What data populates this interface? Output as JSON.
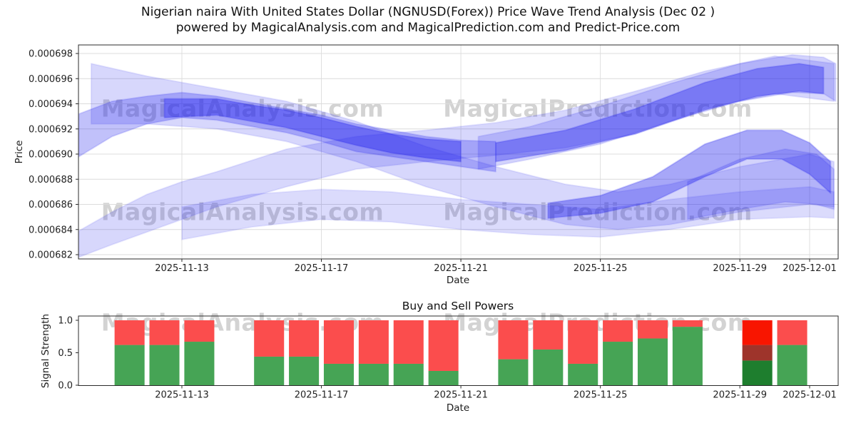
{
  "title_line1": "Nigerian naira With United States Dollar (NGNUSD(Forex)) Price Wave Trend Analysis (Dec 02 )",
  "title_line2": "powered by MagicalAnalysis.com and MagicalPrediction.com and Predict-Price.com",
  "watermarks": {
    "left": "MagicalAnalysis.com",
    "right": "MagicalPrediction.com"
  },
  "colors": {
    "band": "#2222ee",
    "grid": "#dcdcdc",
    "axis": "#2b2b2b",
    "green": "#46a455",
    "red": "#fb4d4d",
    "bright_red": "#f81500",
    "dark_red": "#9e342b",
    "dark_green": "#1e7e2e"
  },
  "chart_data": [
    {
      "type": "area",
      "title": "",
      "xlabel": "Date",
      "ylabel": "Price",
      "x_day_origin": "day 0 = 2025-11-10",
      "ylim": [
        0.000682,
        0.000698
      ],
      "grid": true,
      "y_unit_note": "band values are price × 1e-6 (e.g. 693.5 = 0.0006935)",
      "yticks": [
        {
          "v": 682,
          "label": "0.000682"
        },
        {
          "v": 684,
          "label": "0.000684"
        },
        {
          "v": 686,
          "label": "0.000686"
        },
        {
          "v": 688,
          "label": "0.000688"
        },
        {
          "v": 690,
          "label": "0.000690"
        },
        {
          "v": 692,
          "label": "0.000692"
        },
        {
          "v": 694,
          "label": "0.000694"
        },
        {
          "v": 696,
          "label": "0.000696"
        },
        {
          "v": 698,
          "label": "0.000698"
        }
      ],
      "xticks": [
        {
          "day": 3,
          "label": "2025-11-13"
        },
        {
          "day": 7,
          "label": "2025-11-17"
        },
        {
          "day": 11,
          "label": "2025-11-21"
        },
        {
          "day": 15,
          "label": "2025-11-25"
        },
        {
          "day": 19,
          "label": "2025-11-29"
        },
        {
          "day": 21,
          "label": "2025-12-01"
        }
      ],
      "bands": [
        {
          "opacity": 0.18,
          "points": [
            [
              0.05,
              681.8,
              683.9
            ],
            [
              1,
              682.8,
              685.4
            ],
            [
              2,
              683.8,
              686.8
            ],
            [
              3,
              684.8,
              687.8
            ],
            [
              4,
              685.8,
              688.6
            ],
            [
              6,
              687.4,
              690.4
            ],
            [
              8,
              688.8,
              691.4
            ],
            [
              10,
              689.4,
              691.9
            ],
            [
              12,
              689.9,
              692.5
            ],
            [
              14,
              690.5,
              693.5
            ],
            [
              16,
              691.6,
              695
            ],
            [
              18,
              693.6,
              696.6
            ],
            [
              20,
              694.8,
              697.8
            ],
            [
              21.7,
              694.2,
              697.2
            ]
          ]
        },
        {
          "opacity": 0.18,
          "points": [
            [
              0.4,
              692.4,
              697.2
            ],
            [
              2,
              692.4,
              696.2
            ],
            [
              4,
              692,
              695.2
            ],
            [
              6,
              691,
              694.2
            ],
            [
              8,
              689.4,
              692.6
            ],
            [
              10,
              687.4,
              690.6
            ],
            [
              12,
              685.8,
              689
            ],
            [
              14,
              684.4,
              687.6
            ],
            [
              15.5,
              684,
              687
            ],
            [
              17,
              684.4,
              687.6
            ],
            [
              19,
              685.4,
              689
            ],
            [
              21,
              686,
              690
            ],
            [
              21.7,
              685.8,
              689.4
            ]
          ]
        },
        {
          "opacity": 0.28,
          "points": [
            [
              0.05,
              689.8,
              693.2
            ],
            [
              1,
              691.4,
              694.2
            ],
            [
              2,
              692.4,
              694.6
            ],
            [
              3,
              692.9,
              694.9
            ],
            [
              4,
              692.7,
              694.6
            ],
            [
              5,
              692.2,
              694.1
            ],
            [
              6,
              691.7,
              693.6
            ],
            [
              7,
              691,
              693.1
            ],
            [
              8,
              690.2,
              692.4
            ],
            [
              9,
              689.8,
              691.9
            ],
            [
              10,
              689.4,
              691.4
            ],
            [
              11,
              689,
              691.1
            ],
            [
              12,
              688.6,
              691
            ]
          ]
        },
        {
          "opacity": 0.42,
          "points": [
            [
              2.5,
              692.9,
              694.4
            ],
            [
              4,
              693.1,
              694.4
            ],
            [
              5,
              692.6,
              693.9
            ],
            [
              6,
              692.1,
              693.5
            ],
            [
              7,
              691.4,
              692.9
            ],
            [
              8,
              690.7,
              692.2
            ],
            [
              9,
              690.1,
              691.6
            ],
            [
              10,
              689.7,
              691.2
            ],
            [
              11,
              689.4,
              691
            ]
          ]
        },
        {
          "opacity": 0.16,
          "points": [
            [
              3,
              683.2,
              685.8
            ],
            [
              5,
              684.2,
              686.8
            ],
            [
              7,
              684.8,
              687.2
            ],
            [
              9,
              684.6,
              687
            ],
            [
              11,
              684,
              686.4
            ],
            [
              13,
              683.6,
              686
            ],
            [
              15,
              683.4,
              685.6
            ],
            [
              17,
              684,
              686.4
            ],
            [
              19,
              684.8,
              687
            ],
            [
              21,
              685,
              687.4
            ],
            [
              21.7,
              684.9,
              687
            ]
          ]
        },
        {
          "opacity": 0.2,
          "points": [
            [
              11.5,
              688.8,
              691.4
            ],
            [
              13,
              689.6,
              692.2
            ],
            [
              15,
              690.8,
              693.8
            ],
            [
              17,
              692.6,
              695.6
            ],
            [
              19,
              694.2,
              697.2
            ],
            [
              20.5,
              694.9,
              697.9
            ],
            [
              21.4,
              694.8,
              697.7
            ],
            [
              21.75,
              694.2,
              697.2
            ]
          ]
        },
        {
          "opacity": 0.4,
          "points": [
            [
              12,
              689.4,
              690.9
            ],
            [
              14,
              690.3,
              691.9
            ],
            [
              16,
              691.6,
              693.6
            ],
            [
              18,
              693.5,
              695.7
            ],
            [
              19.5,
              694.6,
              696.8
            ],
            [
              20.7,
              695,
              697.2
            ],
            [
              21.4,
              694.8,
              696.9
            ]
          ]
        },
        {
          "opacity": 0.4,
          "points": [
            [
              13.5,
              684.9,
              686.1
            ],
            [
              15,
              685.3,
              686.7
            ],
            [
              16.5,
              686.2,
              688.2
            ],
            [
              18,
              688.2,
              690.8
            ],
            [
              19.2,
              689.6,
              691.9
            ],
            [
              20.2,
              689.6,
              691.9
            ],
            [
              21,
              688.4,
              690.9
            ],
            [
              21.6,
              686.9,
              689.4
            ]
          ]
        },
        {
          "opacity": 0.2,
          "points": [
            [
              17.5,
              684.8,
              687.8
            ],
            [
              19,
              685.6,
              689.6
            ],
            [
              20.3,
              686.2,
              690.4
            ],
            [
              21.2,
              686,
              690
            ],
            [
              21.7,
              685.6,
              688.8
            ]
          ]
        }
      ]
    },
    {
      "type": "bar",
      "title": "Buy and Sell Powers",
      "xlabel": "Date",
      "ylabel": "Signal Strength",
      "ylim": [
        0,
        1
      ],
      "bar_width_days": 0.86,
      "yticks": [
        {
          "v": 0,
          "label": "0.0"
        },
        {
          "v": 0.5,
          "label": "0.5"
        },
        {
          "v": 1,
          "label": "1.0"
        }
      ],
      "xticks": [
        {
          "day": 3,
          "label": "2025-11-13"
        },
        {
          "day": 7,
          "label": "2025-11-17"
        },
        {
          "day": 11,
          "label": "2025-11-21"
        },
        {
          "day": 15,
          "label": "2025-11-25"
        },
        {
          "day": 19,
          "label": "2025-11-29"
        },
        {
          "day": 21,
          "label": "2025-12-01"
        }
      ],
      "bars": [
        {
          "day": 1.5,
          "segments": [
            [
              0,
              0.62,
              "green"
            ],
            [
              0.62,
              1,
              "red"
            ]
          ]
        },
        {
          "day": 2.5,
          "segments": [
            [
              0,
              0.62,
              "green"
            ],
            [
              0.62,
              1,
              "red"
            ]
          ]
        },
        {
          "day": 3.5,
          "segments": [
            [
              0,
              0.67,
              "green"
            ],
            [
              0.67,
              1,
              "red"
            ]
          ]
        },
        {
          "day": 5.5,
          "segments": [
            [
              0,
              0.44,
              "green"
            ],
            [
              0.44,
              1,
              "red"
            ]
          ]
        },
        {
          "day": 6.5,
          "segments": [
            [
              0,
              0.44,
              "green"
            ],
            [
              0.44,
              1,
              "red"
            ]
          ]
        },
        {
          "day": 7.5,
          "segments": [
            [
              0,
              0.33,
              "green"
            ],
            [
              0.33,
              1,
              "red"
            ]
          ]
        },
        {
          "day": 8.5,
          "segments": [
            [
              0,
              0.33,
              "green"
            ],
            [
              0.33,
              1,
              "red"
            ]
          ]
        },
        {
          "day": 9.5,
          "segments": [
            [
              0,
              0.33,
              "green"
            ],
            [
              0.33,
              1,
              "red"
            ]
          ]
        },
        {
          "day": 10.5,
          "segments": [
            [
              0,
              0.22,
              "green"
            ],
            [
              0.22,
              1,
              "red"
            ]
          ]
        },
        {
          "day": 12.5,
          "segments": [
            [
              0,
              0.4,
              "green"
            ],
            [
              0.4,
              1,
              "red"
            ]
          ]
        },
        {
          "day": 13.5,
          "segments": [
            [
              0,
              0.55,
              "green"
            ],
            [
              0.55,
              1,
              "red"
            ]
          ]
        },
        {
          "day": 14.5,
          "segments": [
            [
              0,
              0.33,
              "green"
            ],
            [
              0.33,
              1,
              "red"
            ]
          ]
        },
        {
          "day": 15.5,
          "segments": [
            [
              0,
              0.67,
              "green"
            ],
            [
              0.67,
              1,
              "red"
            ]
          ]
        },
        {
          "day": 16.5,
          "segments": [
            [
              0,
              0.72,
              "green"
            ],
            [
              0.72,
              1,
              "red"
            ]
          ]
        },
        {
          "day": 17.5,
          "segments": [
            [
              0,
              0.9,
              "green"
            ],
            [
              0.9,
              1,
              "red"
            ]
          ]
        },
        {
          "day": 19.5,
          "segments": [
            [
              0,
              0.38,
              "dark_green"
            ],
            [
              0.38,
              0.62,
              "dark_red"
            ],
            [
              0.62,
              1,
              "bright_red"
            ]
          ]
        },
        {
          "day": 20.5,
          "segments": [
            [
              0,
              0.62,
              "green"
            ],
            [
              0.62,
              1,
              "red"
            ]
          ]
        }
      ]
    }
  ]
}
